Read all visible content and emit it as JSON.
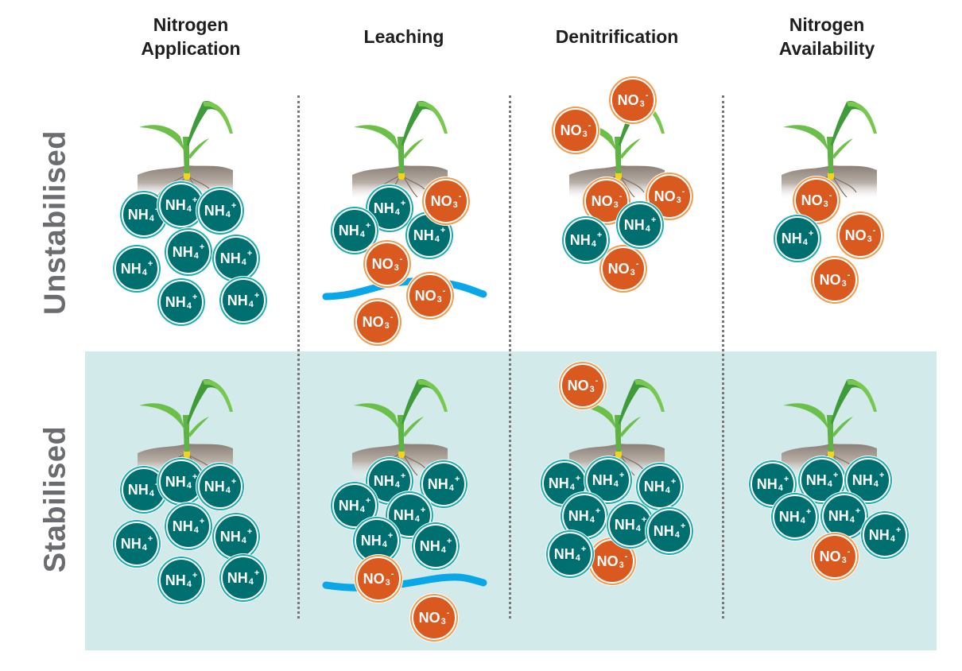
{
  "columns": [
    {
      "line1": "Nitrogen",
      "line2": "Application"
    },
    {
      "line1": "",
      "line2": "Leaching"
    },
    {
      "line1": "",
      "line2": "Denitrification"
    },
    {
      "line1": "Nitrogen",
      "line2": "Availability"
    }
  ],
  "rows": [
    "Unstabilised",
    "Stabilised"
  ],
  "ion_types": {
    "nh4": {
      "base": "NH",
      "sub": "4",
      "charge": "+"
    },
    "no3": {
      "base": "NO",
      "sub": "3",
      "charge": "-"
    }
  },
  "colors": {
    "ammonium": "#006f6f",
    "ammonium_ring": "#1aacae",
    "nitrate": "#d9591f",
    "nitrate_ring": "#f39a4c",
    "water": "#0aa7e8",
    "stabilised_bg": "#d3eaeb"
  },
  "panels": [
    {
      "row": "Unstabilised",
      "column": "Nitrogen Application",
      "ions": [
        "nh4",
        "nh4",
        "nh4",
        "nh4",
        "nh4",
        "nh4",
        "nh4",
        "nh4"
      ]
    },
    {
      "row": "Unstabilised",
      "column": "Leaching",
      "ions": [
        "nh4",
        "nh4",
        "nh4",
        "no3",
        "no3",
        "no3",
        "no3"
      ]
    },
    {
      "row": "Unstabilised",
      "column": "Denitrification",
      "ions": [
        "no3",
        "no3",
        "no3",
        "no3",
        "no3",
        "nh4",
        "nh4"
      ]
    },
    {
      "row": "Unstabilised",
      "column": "Nitrogen Availability",
      "ions": [
        "no3",
        "no3",
        "no3",
        "nh4"
      ]
    },
    {
      "row": "Stabilised",
      "column": "Nitrogen Application",
      "ions": [
        "nh4",
        "nh4",
        "nh4",
        "nh4",
        "nh4",
        "nh4",
        "nh4",
        "nh4"
      ]
    },
    {
      "row": "Stabilised",
      "column": "Leaching",
      "ions": [
        "nh4",
        "nh4",
        "nh4",
        "nh4",
        "nh4",
        "nh4",
        "no3",
        "no3"
      ]
    },
    {
      "row": "Stabilised",
      "column": "Denitrification",
      "ions": [
        "no3",
        "no3",
        "nh4",
        "nh4",
        "nh4",
        "nh4",
        "nh4",
        "nh4",
        "nh4"
      ]
    },
    {
      "row": "Stabilised",
      "column": "Nitrogen Availability",
      "ions": [
        "nh4",
        "nh4",
        "nh4",
        "nh4",
        "nh4",
        "nh4",
        "no3"
      ]
    }
  ]
}
